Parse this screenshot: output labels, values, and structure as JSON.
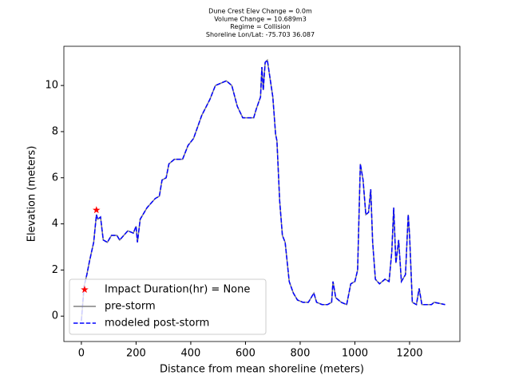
{
  "chart_data": {
    "type": "line",
    "title": [
      "Dune Crest Elev Change = 0.0m",
      "Volume Change = 10.689m3",
      "Regime = Collision",
      "Shoreline Lon/Lat: -75.703 36.087"
    ],
    "xlabel": "Distance from mean shoreline (meters)",
    "ylabel": "Elevation (meters)",
    "xlim": [
      -64,
      1384
    ],
    "ylim": [
      -1.1,
      11.7
    ],
    "xticks": [
      0,
      200,
      400,
      600,
      800,
      1000,
      1200
    ],
    "yticks": [
      0,
      2,
      4,
      6,
      8,
      10
    ],
    "legend": "lower left",
    "x": [
      0,
      10,
      20,
      30,
      45,
      55,
      60,
      70,
      80,
      95,
      110,
      130,
      140,
      155,
      170,
      190,
      200,
      205,
      215,
      240,
      270,
      285,
      295,
      310,
      320,
      340,
      370,
      390,
      410,
      440,
      470,
      490,
      510,
      530,
      550,
      570,
      590,
      610,
      630,
      640,
      655,
      660,
      665,
      672,
      680,
      690,
      700,
      710,
      715,
      725,
      735,
      745,
      760,
      775,
      790,
      810,
      830,
      840,
      850,
      860,
      880,
      900,
      915,
      920,
      930,
      950,
      970,
      985,
      1000,
      1010,
      1020,
      1030,
      1040,
      1050,
      1058,
      1065,
      1075,
      1090,
      1110,
      1125,
      1135,
      1142,
      1150,
      1160,
      1170,
      1185,
      1195,
      1200,
      1210,
      1225,
      1235,
      1245,
      1280,
      1290,
      1330
    ],
    "series": [
      {
        "name": "Impact Duration(hr) = None",
        "color": "#ff0000",
        "marker": "star",
        "x": [
          55
        ],
        "values": [
          4.6
        ]
      },
      {
        "name": "pre-storm",
        "color": "#808080",
        "linestyle": "solid",
        "values": [
          -0.2,
          1.3,
          1.8,
          2.4,
          3.2,
          4.4,
          4.2,
          4.3,
          3.3,
          3.2,
          3.5,
          3.5,
          3.3,
          3.5,
          3.7,
          3.6,
          3.9,
          3.2,
          4.2,
          4.7,
          5.1,
          5.2,
          5.9,
          6.0,
          6.6,
          6.8,
          6.8,
          7.4,
          7.7,
          8.7,
          9.4,
          10.0,
          10.1,
          10.2,
          10.0,
          9.1,
          8.6,
          8.6,
          8.6,
          9.0,
          9.5,
          10.8,
          9.8,
          11.0,
          11.1,
          10.3,
          9.5,
          7.9,
          7.6,
          5.0,
          3.5,
          3.2,
          1.5,
          1.0,
          0.7,
          0.6,
          0.6,
          0.8,
          1.0,
          0.6,
          0.5,
          0.5,
          0.6,
          1.5,
          0.8,
          0.6,
          0.5,
          1.4,
          1.5,
          2.0,
          6.6,
          5.9,
          4.4,
          4.5,
          5.5,
          3.2,
          1.6,
          1.4,
          1.6,
          1.5,
          2.8,
          4.7,
          2.3,
          3.3,
          1.5,
          1.8,
          4.4,
          3.5,
          0.6,
          0.5,
          1.2,
          0.5,
          0.5,
          0.6,
          0.5
        ]
      },
      {
        "name": "modeled post-storm",
        "color": "#0000ff",
        "linestyle": "dashed",
        "values": [
          -0.2,
          1.3,
          1.8,
          2.4,
          3.2,
          4.4,
          4.2,
          4.3,
          3.3,
          3.2,
          3.5,
          3.5,
          3.3,
          3.5,
          3.7,
          3.6,
          3.9,
          3.2,
          4.2,
          4.7,
          5.1,
          5.2,
          5.9,
          6.0,
          6.6,
          6.8,
          6.8,
          7.4,
          7.7,
          8.7,
          9.4,
          10.0,
          10.1,
          10.2,
          10.0,
          9.1,
          8.6,
          8.6,
          8.6,
          9.0,
          9.5,
          10.8,
          9.8,
          11.0,
          11.1,
          10.3,
          9.5,
          7.9,
          7.6,
          5.0,
          3.5,
          3.2,
          1.5,
          1.0,
          0.7,
          0.6,
          0.6,
          0.8,
          1.0,
          0.6,
          0.5,
          0.5,
          0.6,
          1.5,
          0.8,
          0.6,
          0.5,
          1.4,
          1.5,
          2.0,
          6.6,
          5.9,
          4.4,
          4.5,
          5.5,
          3.2,
          1.6,
          1.4,
          1.6,
          1.5,
          2.8,
          4.7,
          2.3,
          3.3,
          1.5,
          1.8,
          4.4,
          3.5,
          0.6,
          0.5,
          1.2,
          0.5,
          0.5,
          0.6,
          0.5
        ]
      }
    ]
  }
}
